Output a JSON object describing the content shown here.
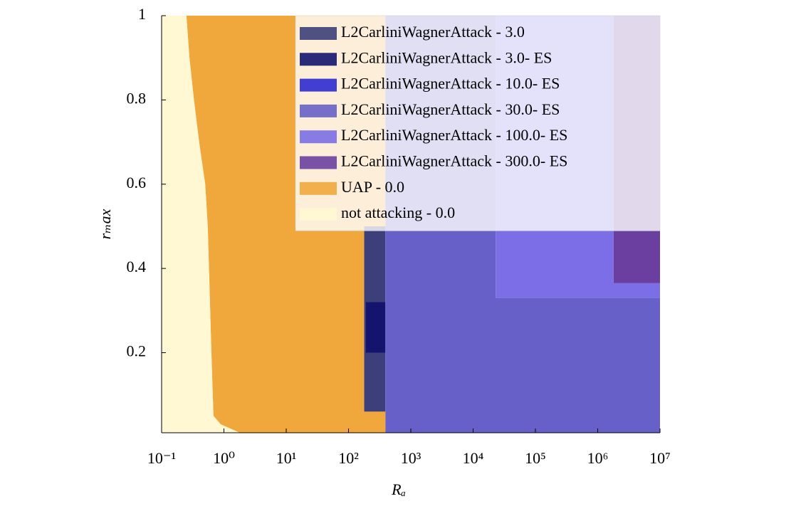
{
  "chart_data": {
    "type": "region",
    "xlabel": "Rₐ",
    "ylabel": "rₘax",
    "xlog": true,
    "xlim": [
      0.1,
      10000000
    ],
    "ylim": [
      0.01,
      1
    ],
    "xticks": [
      {
        "value": 0.1,
        "label": "10⁻¹"
      },
      {
        "value": 1,
        "label": "10⁰"
      },
      {
        "value": 10,
        "label": "10¹"
      },
      {
        "value": 100,
        "label": "10²"
      },
      {
        "value": 1000,
        "label": "10³"
      },
      {
        "value": 10000,
        "label": "10⁴"
      },
      {
        "value": 100000,
        "label": "10⁵"
      },
      {
        "value": 1000000,
        "label": "10⁶"
      },
      {
        "value": 10000000,
        "label": "10⁷"
      }
    ],
    "yticks": [
      0.2,
      0.4,
      0.6,
      0.8,
      1
    ],
    "legend": "upper right",
    "series": [
      {
        "name": "L2CarliniWagnerAttack - 3.0",
        "color": "#3d3f7a",
        "x": [
          178,
          390,
          390,
          178
        ],
        "y": [
          0.06,
          0.06,
          0.5,
          0.5
        ]
      },
      {
        "name": "L2CarliniWagnerAttack - 3.0- ES",
        "color": "#14146e",
        "x": [
          190,
          390,
          390,
          190
        ],
        "y": [
          0.2,
          0.2,
          0.32,
          0.32
        ]
      },
      {
        "name": "L2CarliniWagnerAttack - 10.0- ES",
        "color": "#2b2bd1"
      },
      {
        "name": "L2CarliniWagnerAttack - 30.0- ES",
        "color": "#6660c8",
        "x": [
          390,
          10000000,
          10000000,
          23000,
          23000,
          390
        ],
        "y": [
          0.01,
          0.01,
          0.33,
          0.33,
          1,
          1
        ]
      },
      {
        "name": "L2CarliniWagnerAttack - 100.0- ES",
        "color": "#7b6ee6",
        "x": [
          23000,
          10000000,
          10000000,
          1800000,
          1800000,
          23000
        ],
        "y": [
          0.33,
          0.33,
          0.365,
          0.365,
          1,
          1
        ]
      },
      {
        "name": "L2CarliniWagnerAttack - 300.0- ES",
        "color": "#6a3fa0",
        "x": [
          1800000,
          10000000,
          10000000,
          1800000
        ],
        "y": [
          0.365,
          0.365,
          1,
          1
        ]
      },
      {
        "name": "UAP - 0.0",
        "color": "#f0a83c",
        "x": [
          0.25,
          0.28,
          0.33,
          0.4,
          0.5,
          0.55,
          0.63,
          0.68,
          0.89,
          1.8,
          390,
          390,
          178,
          178,
          390,
          390
        ],
        "y": [
          1,
          0.9,
          0.8,
          0.7,
          0.6,
          0.5,
          0.2,
          0.05,
          0.03,
          0.01,
          0.01,
          0.06,
          0.06,
          0.5,
          0.5,
          1
        ]
      },
      {
        "name": "not attacking - 0.0",
        "color": "#fff8d2",
        "x": [
          0.1,
          0.25,
          0.28,
          0.33,
          0.4,
          0.5,
          0.55,
          0.63,
          0.68,
          0.89,
          1.8,
          0.1
        ],
        "y": [
          1,
          1,
          0.9,
          0.8,
          0.7,
          0.6,
          0.5,
          0.2,
          0.05,
          0.03,
          0.01,
          0.01
        ]
      }
    ]
  }
}
